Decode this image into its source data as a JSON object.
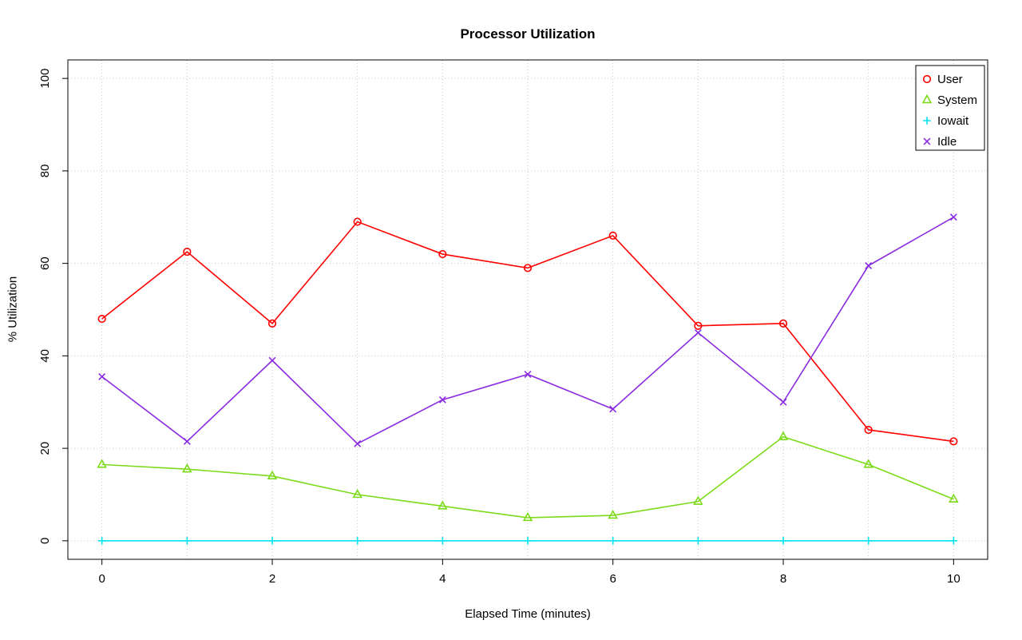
{
  "chart_data": {
    "type": "line",
    "title": "Processor Utilization",
    "xlabel": "Elapsed Time (minutes)",
    "ylabel": "% Utilization",
    "xlim": [
      0,
      10
    ],
    "ylim": [
      0,
      100
    ],
    "x_ticks": [
      0,
      2,
      4,
      6,
      8,
      10
    ],
    "y_ticks": [
      0,
      20,
      40,
      60,
      80,
      100
    ],
    "grid": true,
    "legend_position": "top-right",
    "x": [
      0,
      1,
      2,
      3,
      4,
      5,
      6,
      7,
      8,
      9,
      10
    ],
    "series": [
      {
        "name": "User",
        "color": "#FF0000",
        "marker": "circle",
        "values": [
          48,
          62.5,
          47,
          69,
          62,
          59,
          66,
          46.5,
          47,
          24,
          21.5
        ]
      },
      {
        "name": "System",
        "color": "#7CDB19",
        "marker": "triangle",
        "values": [
          16.5,
          15.5,
          14,
          10,
          7.5,
          5,
          5.5,
          8.5,
          22.5,
          16.5,
          9
        ]
      },
      {
        "name": "Iowait",
        "color": "#00E5EE",
        "marker": "plus",
        "values": [
          0,
          0,
          0,
          0,
          0,
          0,
          0,
          0,
          0,
          0,
          0
        ]
      },
      {
        "name": "Idle",
        "color": "#8A2BE2",
        "marker": "x",
        "values": [
          35.5,
          21.5,
          39,
          21,
          30.5,
          36,
          28.5,
          45,
          30,
          59.5,
          70
        ]
      }
    ],
    "colors": {
      "grid": "#C6C6C6",
      "axis": "#000000",
      "background": "#FFFFFF"
    }
  }
}
